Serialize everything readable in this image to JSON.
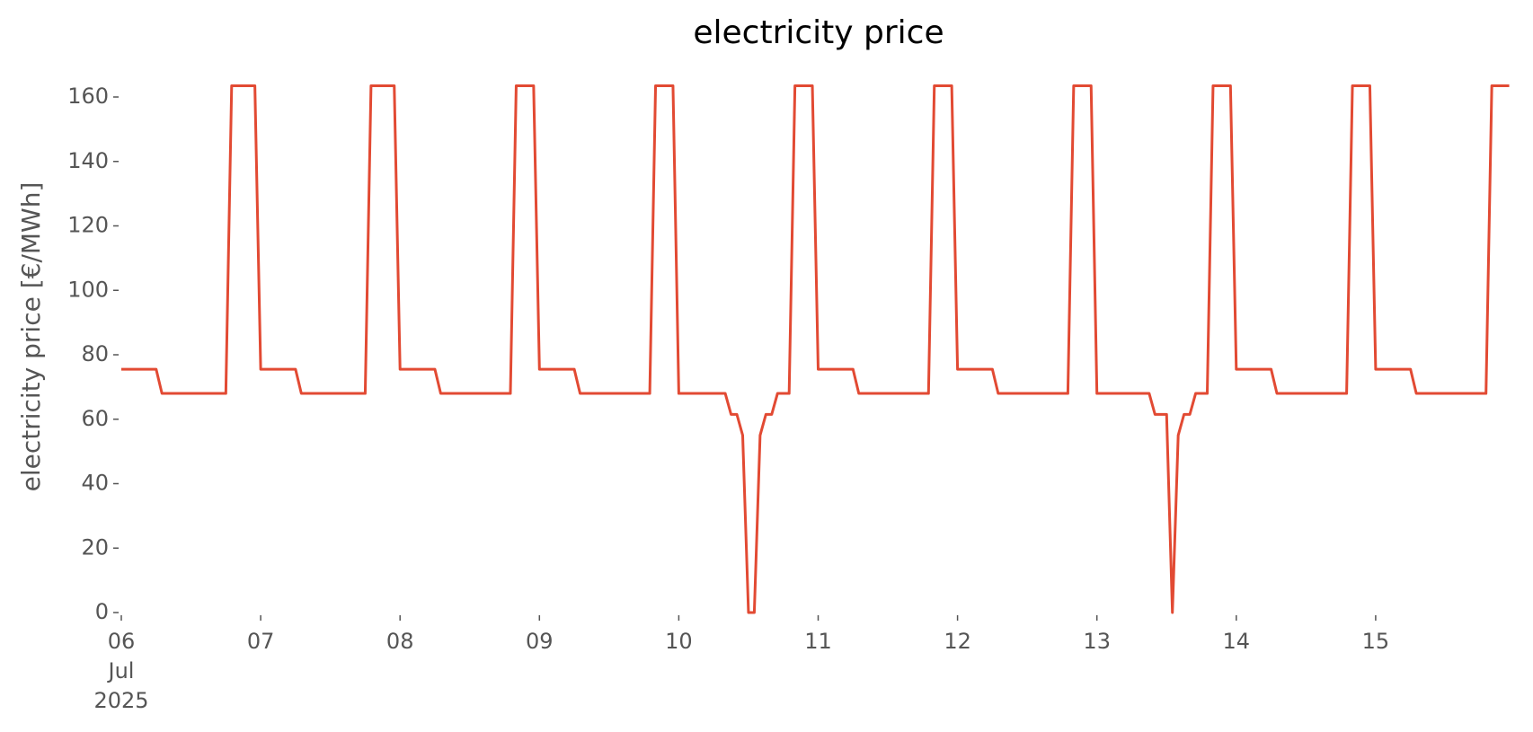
{
  "chart_data": {
    "type": "line",
    "title": "electricity price",
    "ylabel": "electricity price [€/MWh]",
    "x": [
      0,
      6,
      7,
      18,
      19,
      23,
      24,
      30,
      31,
      42,
      43,
      47,
      48,
      54,
      55,
      67,
      68,
      71,
      72,
      78,
      79,
      91,
      92,
      95,
      96,
      104,
      105,
      106,
      107,
      108,
      109,
      110,
      111,
      112,
      113,
      115,
      116,
      119,
      120,
      126,
      127,
      139,
      140,
      143,
      144,
      150,
      151,
      163,
      164,
      167,
      168,
      177,
      178,
      180,
      181,
      182,
      183,
      184,
      185,
      187,
      188,
      191,
      192,
      198,
      199,
      211,
      212,
      215,
      216,
      222,
      223,
      235,
      236,
      239
    ],
    "series": [
      {
        "name": "electricity price",
        "color": "#e24a33",
        "values": [
          75.5,
          75.5,
          68,
          68,
          163.5,
          163.5,
          75.5,
          75.5,
          68,
          68,
          163.5,
          163.5,
          75.5,
          75.5,
          68,
          68,
          163.5,
          163.5,
          75.5,
          75.5,
          68,
          68,
          163.5,
          163.5,
          68,
          68,
          61.5,
          61.5,
          55,
          0,
          0,
          55,
          61.5,
          61.5,
          68,
          68,
          163.5,
          163.5,
          75.5,
          75.5,
          68,
          68,
          163.5,
          163.5,
          75.5,
          75.5,
          68,
          68,
          163.5,
          163.5,
          68,
          68,
          61.5,
          61.5,
          0,
          55,
          61.5,
          61.5,
          68,
          68,
          163.5,
          163.5,
          75.5,
          75.5,
          68,
          68,
          163.5,
          163.5,
          75.5,
          75.5,
          68,
          68,
          163.5,
          163.5
        ]
      }
    ],
    "xlim": [
      0,
      239
    ],
    "xticks": [
      {
        "value": 0,
        "label": "06\nJul\n2025"
      },
      {
        "value": 24,
        "label": "07"
      },
      {
        "value": 48,
        "label": "08"
      },
      {
        "value": 72,
        "label": "09"
      },
      {
        "value": 96,
        "label": "10"
      },
      {
        "value": 120,
        "label": "11"
      },
      {
        "value": 144,
        "label": "12"
      },
      {
        "value": 168,
        "label": "13"
      },
      {
        "value": 192,
        "label": "14"
      },
      {
        "value": 216,
        "label": "15"
      }
    ],
    "ylim": [
      0,
      163.5
    ],
    "yticks": [
      0,
      20,
      40,
      60,
      80,
      100,
      120,
      140,
      160
    ],
    "grid": false
  }
}
